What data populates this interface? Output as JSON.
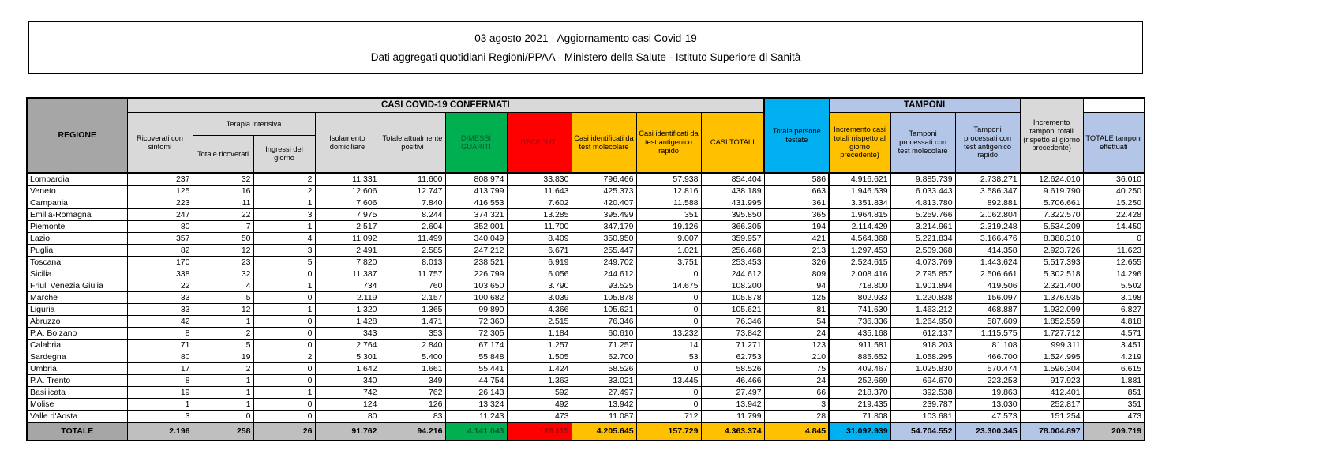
{
  "title": {
    "line1": "03 agosto 2021 - Aggiornamento casi Covid-19",
    "line2": "Dati aggregati quotidiani Regioni/PPAA - Ministero della Salute - Istituto Superiore di Sanità"
  },
  "colors": {
    "green": "#00B050",
    "green_text": "#0A5B2F",
    "red": "#FF0000",
    "red_text": "#8F1111",
    "yellow": "#FFC000",
    "cyan": "#00B0F0",
    "light_blue": "#B4C6E7",
    "gray_dark": "#A6A6A6",
    "gray_light": "#D9D9D9",
    "gray_mid": "#BFBFBF"
  },
  "table": {
    "banners": {
      "casi": "CASI COVID-19 CONFERMATI",
      "tamponi": "TAMPONI"
    },
    "headers": {
      "regione": "REGIONE",
      "ricoverati": "Ricoverati con sintomi",
      "terapia_intensiva": "Terapia intensiva",
      "totale_ricoverati": "Totale ricoverati",
      "ingressi_giorno": "Ingressi del giorno",
      "isolamento": "Isolamento domiciliare",
      "attualmente_positivi": "Totale attualmente positivi",
      "dimessi": "DIMESSI GUARITI",
      "deceduti": "DECEDUTI",
      "casi_molecolare": "Casi identificati da test molecolare",
      "casi_antigenico": "Casi identificati da test antigenico rapido",
      "casi_totali": "CASI TOTALI",
      "incremento_casi": "Incremento casi totali (rispetto al giorno precedente)",
      "persone_testate": "Totale persone testate",
      "tamponi_molecolare": "Tamponi processati con test molecolare",
      "tamponi_antigenico": "Tamponi processati con test antigenico rapido",
      "totale_tamponi": "TOTALE tamponi effettuati",
      "incremento_tamponi": "Incremento tamponi totali (rispetto al giorno precedente)"
    },
    "rows": [
      [
        "Lombardia",
        "237",
        "32",
        "2",
        "11.331",
        "11.600",
        "808.974",
        "33.830",
        "796.466",
        "57.938",
        "854.404",
        "586",
        "4.916.621",
        "9.885.739",
        "2.738.271",
        "12.624.010",
        "36.010"
      ],
      [
        "Veneto",
        "125",
        "16",
        "2",
        "12.606",
        "12.747",
        "413.799",
        "11.643",
        "425.373",
        "12.816",
        "438.189",
        "663",
        "1.946.539",
        "6.033.443",
        "3.586.347",
        "9.619.790",
        "40.250"
      ],
      [
        "Campania",
        "223",
        "11",
        "1",
        "7.606",
        "7.840",
        "416.553",
        "7.602",
        "420.407",
        "11.588",
        "431.995",
        "361",
        "3.351.834",
        "4.813.780",
        "892.881",
        "5.706.661",
        "15.250"
      ],
      [
        "Emilia-Romagna",
        "247",
        "22",
        "3",
        "7.975",
        "8.244",
        "374.321",
        "13.285",
        "395.499",
        "351",
        "395.850",
        "365",
        "1.964.815",
        "5.259.766",
        "2.062.804",
        "7.322.570",
        "22.428"
      ],
      [
        "Piemonte",
        "80",
        "7",
        "1",
        "2.517",
        "2.604",
        "352.001",
        "11.700",
        "347.179",
        "19.126",
        "366.305",
        "194",
        "2.114.429",
        "3.214.961",
        "2.319.248",
        "5.534.209",
        "14.450"
      ],
      [
        "Lazio",
        "357",
        "50",
        "4",
        "11.092",
        "11.499",
        "340.049",
        "8.409",
        "350.950",
        "9.007",
        "359.957",
        "421",
        "4.564.368",
        "5.221.834",
        "3.166.476",
        "8.388.310",
        "0"
      ],
      [
        "Puglia",
        "82",
        "12",
        "3",
        "2.491",
        "2.585",
        "247.212",
        "6.671",
        "255.447",
        "1.021",
        "256.468",
        "213",
        "1.297.453",
        "2.509.368",
        "414.358",
        "2.923.726",
        "11.623"
      ],
      [
        "Toscana",
        "170",
        "23",
        "5",
        "7.820",
        "8.013",
        "238.521",
        "6.919",
        "249.702",
        "3.751",
        "253.453",
        "326",
        "2.524.615",
        "4.073.769",
        "1.443.624",
        "5.517.393",
        "12.655"
      ],
      [
        "Sicilia",
        "338",
        "32",
        "0",
        "11.387",
        "11.757",
        "226.799",
        "6.056",
        "244.612",
        "0",
        "244.612",
        "809",
        "2.008.416",
        "2.795.857",
        "2.506.661",
        "5.302.518",
        "14.296"
      ],
      [
        "Friuli Venezia Giulia",
        "22",
        "4",
        "1",
        "734",
        "760",
        "103.650",
        "3.790",
        "93.525",
        "14.675",
        "108.200",
        "94",
        "718.800",
        "1.901.894",
        "419.506",
        "2.321.400",
        "5.502"
      ],
      [
        "Marche",
        "33",
        "5",
        "0",
        "2.119",
        "2.157",
        "100.682",
        "3.039",
        "105.878",
        "0",
        "105.878",
        "125",
        "802.933",
        "1.220.838",
        "156.097",
        "1.376.935",
        "3.198"
      ],
      [
        "Liguria",
        "33",
        "12",
        "1",
        "1.320",
        "1.365",
        "99.890",
        "4.366",
        "105.621",
        "0",
        "105.621",
        "81",
        "741.630",
        "1.463.212",
        "468.887",
        "1.932.099",
        "6.827"
      ],
      [
        "Abruzzo",
        "42",
        "1",
        "0",
        "1.428",
        "1.471",
        "72.360",
        "2.515",
        "76.346",
        "0",
        "76.346",
        "54",
        "736.336",
        "1.264.950",
        "587.609",
        "1.852.559",
        "4.818"
      ],
      [
        "P.A. Bolzano",
        "8",
        "2",
        "0",
        "343",
        "353",
        "72.305",
        "1.184",
        "60.610",
        "13.232",
        "73.842",
        "24",
        "435.168",
        "612.137",
        "1.115.575",
        "1.727.712",
        "4.571"
      ],
      [
        "Calabria",
        "71",
        "5",
        "0",
        "2.764",
        "2.840",
        "67.174",
        "1.257",
        "71.257",
        "14",
        "71.271",
        "123",
        "911.581",
        "918.203",
        "81.108",
        "999.311",
        "3.451"
      ],
      [
        "Sardegna",
        "80",
        "19",
        "2",
        "5.301",
        "5.400",
        "55.848",
        "1.505",
        "62.700",
        "53",
        "62.753",
        "210",
        "885.652",
        "1.058.295",
        "466.700",
        "1.524.995",
        "4.219"
      ],
      [
        "Umbria",
        "17",
        "2",
        "0",
        "1.642",
        "1.661",
        "55.441",
        "1.424",
        "58.526",
        "0",
        "58.526",
        "75",
        "409.467",
        "1.025.830",
        "570.474",
        "1.596.304",
        "6.615"
      ],
      [
        "P.A. Trento",
        "8",
        "1",
        "0",
        "340",
        "349",
        "44.754",
        "1.363",
        "33.021",
        "13.445",
        "46.466",
        "24",
        "252.669",
        "694.670",
        "223.253",
        "917.923",
        "1.881"
      ],
      [
        "Basilicata",
        "19",
        "1",
        "1",
        "742",
        "762",
        "26.143",
        "592",
        "27.497",
        "0",
        "27.497",
        "66",
        "218.370",
        "392.538",
        "19.863",
        "412.401",
        "851"
      ],
      [
        "Molise",
        "1",
        "1",
        "0",
        "124",
        "126",
        "13.324",
        "492",
        "13.942",
        "0",
        "13.942",
        "3",
        "219.435",
        "239.787",
        "13.030",
        "252.817",
        "351"
      ],
      [
        "Valle d'Aosta",
        "3",
        "0",
        "0",
        "80",
        "83",
        "11.243",
        "473",
        "11.087",
        "712",
        "11.799",
        "28",
        "71.808",
        "103.681",
        "47.573",
        "151.254",
        "473"
      ]
    ],
    "totale": [
      "TOTALE",
      "2.196",
      "258",
      "26",
      "91.762",
      "94.216",
      "4.141.043",
      "128.115",
      "4.205.645",
      "157.729",
      "4.363.374",
      "4.845",
      "31.092.939",
      "54.704.552",
      "23.300.345",
      "78.004.897",
      "209.719"
    ]
  }
}
